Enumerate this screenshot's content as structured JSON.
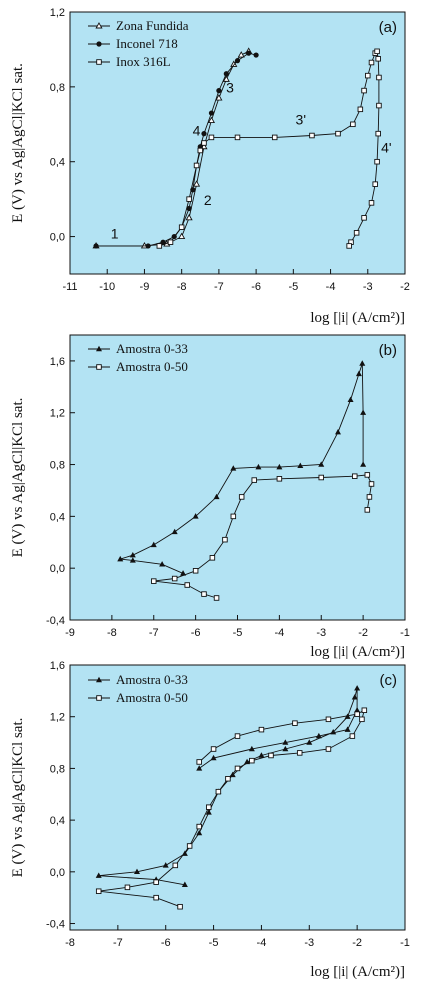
{
  "colors": {
    "plot_background": "#b3e3f3",
    "ink": "#111111"
  },
  "chart_data": [
    {
      "type": "line",
      "panel_label": "(a)",
      "xlabel": "log [|i| (A/cm²)]",
      "ylabel": "E (V) vs Ag|AgCl|KCl sat.",
      "xlim": [
        -11,
        -2
      ],
      "ylim": [
        -0.2,
        1.2
      ],
      "xticks": [
        "-11",
        "-10",
        "-9",
        "-8",
        "-7",
        "-6",
        "-5",
        "-4",
        "-3",
        "-2"
      ],
      "yticks": [
        "0,0",
        "0,4",
        "0,8",
        "1,2"
      ],
      "legend_position": "top-left",
      "series": [
        {
          "name": "Zona Fundida",
          "marker": "tri-open",
          "x": [
            -10.3,
            -9.0,
            -8.4,
            -8.0,
            -7.8,
            -7.6,
            -7.4,
            -7.2,
            -7.0,
            -6.8,
            -6.6,
            -6.4,
            -6.2
          ],
          "y": [
            -0.05,
            -0.05,
            -0.04,
            0.0,
            0.1,
            0.28,
            0.48,
            0.62,
            0.74,
            0.84,
            0.92,
            0.97,
            0.99
          ]
        },
        {
          "name": "Inconel 718",
          "marker": "circle-filled",
          "x": [
            -10.3,
            -8.9,
            -8.5,
            -8.2,
            -8.0,
            -7.8,
            -7.7,
            -7.6,
            -7.5,
            -7.4,
            -7.2,
            -7.0,
            -6.8,
            -6.5,
            -6.2,
            -6.0
          ],
          "y": [
            -0.05,
            -0.05,
            -0.03,
            0.0,
            0.05,
            0.15,
            0.25,
            0.38,
            0.48,
            0.55,
            0.66,
            0.78,
            0.87,
            0.94,
            0.98,
            0.97
          ]
        },
        {
          "name": "Inox 316L",
          "marker": "square-open",
          "x": [
            -8.6,
            -8.3,
            -8.0,
            -7.8,
            -7.6,
            -7.5,
            -7.4,
            -7.2,
            -6.5,
            -5.5,
            -4.5,
            -3.8,
            -3.4,
            -3.2,
            -3.1,
            -3.0,
            -2.9,
            -2.8,
            -2.75,
            -2.72,
            -2.7,
            -2.7,
            -2.72,
            -2.75,
            -2.8,
            -2.9,
            -3.1,
            -3.3,
            -3.45,
            -3.5
          ],
          "y": [
            -0.05,
            -0.03,
            0.05,
            0.2,
            0.38,
            0.46,
            0.5,
            0.53,
            0.53,
            0.53,
            0.54,
            0.55,
            0.6,
            0.68,
            0.78,
            0.86,
            0.93,
            0.98,
            0.99,
            0.95,
            0.85,
            0.7,
            0.55,
            0.4,
            0.28,
            0.18,
            0.1,
            0.02,
            -0.03,
            -0.05
          ]
        }
      ],
      "annotations": [
        {
          "text": "1",
          "x": -9.8,
          "y": -0.01
        },
        {
          "text": "2",
          "x": -7.3,
          "y": 0.17
        },
        {
          "text": "3",
          "x": -6.7,
          "y": 0.77
        },
        {
          "text": "4",
          "x": -7.6,
          "y": 0.54
        },
        {
          "text": "3'",
          "x": -4.8,
          "y": 0.6
        },
        {
          "text": "4'",
          "x": -2.5,
          "y": 0.45
        }
      ]
    },
    {
      "type": "line",
      "panel_label": "(b)",
      "xlabel": "log [|i| (A/cm²)]",
      "ylabel": "E (V) vs Ag|AgCl|KCl sat.",
      "xlim": [
        -9,
        -1
      ],
      "ylim": [
        -0.4,
        1.8
      ],
      "xticks": [
        "-9",
        "-8",
        "-7",
        "-6",
        "-5",
        "-4",
        "-3",
        "-2",
        "-1"
      ],
      "yticks": [
        "-0,4",
        "0,0",
        "0,4",
        "0,8",
        "1,2",
        "1,6"
      ],
      "legend_position": "top-left",
      "series": [
        {
          "name": "Amostra 0-33",
          "marker": "tri-filled",
          "x": [
            -6.3,
            -6.8,
            -7.5,
            -7.8,
            -7.5,
            -7.0,
            -6.5,
            -6.0,
            -5.5,
            -5.1,
            -4.5,
            -4.0,
            -3.5,
            -3.0,
            -2.6,
            -2.3,
            -2.1,
            -2.02,
            -2.0,
            -2.0
          ],
          "y": [
            -0.04,
            0.03,
            0.06,
            0.07,
            0.1,
            0.18,
            0.28,
            0.4,
            0.55,
            0.77,
            0.78,
            0.78,
            0.79,
            0.8,
            1.05,
            1.3,
            1.5,
            1.58,
            1.2,
            0.8
          ]
        },
        {
          "name": "Amostra 0-50",
          "marker": "square-open",
          "x": [
            -5.5,
            -5.8,
            -6.2,
            -7.0,
            -6.5,
            -6.0,
            -5.6,
            -5.3,
            -5.1,
            -4.9,
            -4.6,
            -4.0,
            -3.0,
            -2.2,
            -1.9,
            -1.8,
            -1.85,
            -1.9
          ],
          "y": [
            -0.23,
            -0.2,
            -0.13,
            -0.1,
            -0.08,
            -0.02,
            0.08,
            0.22,
            0.4,
            0.55,
            0.68,
            0.69,
            0.7,
            0.71,
            0.72,
            0.65,
            0.55,
            0.45
          ]
        }
      ]
    },
    {
      "type": "line",
      "panel_label": "(c)",
      "xlabel": "log [|i| (A/cm²)]",
      "ylabel": "E (V) vs Ag|AgCl|KCl sat.",
      "xlim": [
        -8,
        -1
      ],
      "ylim": [
        -0.45,
        1.6
      ],
      "xticks": [
        "-8",
        "-7",
        "-6",
        "-5",
        "-4",
        "-3",
        "-2",
        "-1"
      ],
      "yticks": [
        "-0,4",
        "0,0",
        "0,4",
        "0,8",
        "1,2",
        "1,6"
      ],
      "legend_position": "top-left",
      "series": [
        {
          "name": "Amostra 0-33",
          "marker": "tri-filled",
          "x": [
            -5.6,
            -6.2,
            -7.4,
            -6.6,
            -6.0,
            -5.6,
            -5.3,
            -5.1,
            -4.9,
            -4.6,
            -4.3,
            -4.0,
            -3.5,
            -3.0,
            -2.5,
            -2.2,
            -2.05,
            -2.0,
            -2.0,
            -2.2,
            -2.8,
            -3.5,
            -4.2,
            -5.0,
            -5.3
          ],
          "y": [
            -0.1,
            -0.06,
            -0.03,
            0.0,
            0.05,
            0.14,
            0.3,
            0.46,
            0.62,
            0.75,
            0.85,
            0.9,
            0.95,
            1.0,
            1.08,
            1.2,
            1.35,
            1.42,
            1.25,
            1.1,
            1.05,
            1.0,
            0.95,
            0.88,
            0.8
          ]
        },
        {
          "name": "Amostra 0-50",
          "marker": "square-open",
          "x": [
            -5.7,
            -6.2,
            -7.4,
            -6.8,
            -6.2,
            -5.8,
            -5.5,
            -5.3,
            -5.1,
            -4.9,
            -4.7,
            -4.5,
            -4.2,
            -3.8,
            -3.2,
            -2.6,
            -2.1,
            -1.9,
            -1.85,
            -2.0,
            -2.6,
            -3.3,
            -4.0,
            -4.5,
            -5.0,
            -5.3
          ],
          "y": [
            -0.27,
            -0.2,
            -0.15,
            -0.12,
            -0.08,
            0.05,
            0.2,
            0.35,
            0.5,
            0.62,
            0.72,
            0.8,
            0.86,
            0.9,
            0.92,
            0.95,
            1.05,
            1.18,
            1.25,
            1.22,
            1.18,
            1.15,
            1.1,
            1.05,
            0.95,
            0.85
          ]
        }
      ]
    }
  ]
}
